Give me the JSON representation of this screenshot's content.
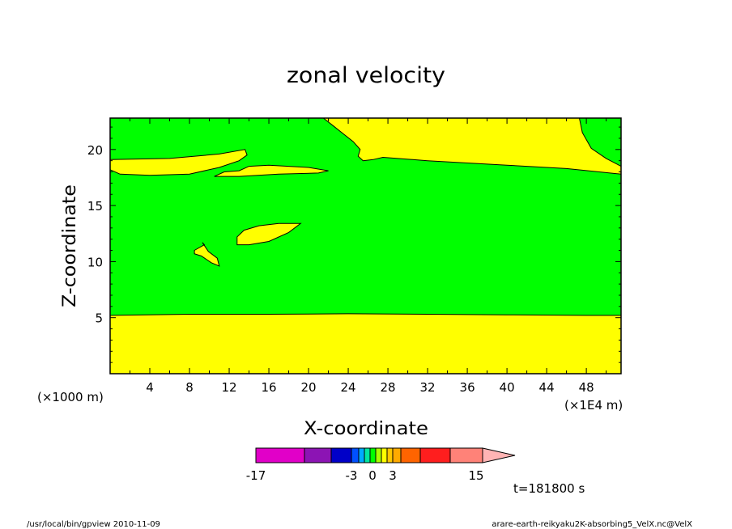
{
  "chart_data": {
    "type": "heatmap",
    "title": "zonal velocity",
    "xlabel": "X-coordinate",
    "ylabel": "Z-coordinate",
    "x_unit_left": "(×1000 m)",
    "x_unit_right": "(×1E4 m)",
    "x_ticks": [
      "4",
      "8",
      "12",
      "16",
      "20",
      "24",
      "28",
      "32",
      "36",
      "40",
      "44",
      "48"
    ],
    "y_ticks": [
      "5",
      "10",
      "15",
      "20"
    ],
    "xlim": [
      0,
      51.5
    ],
    "ylim": [
      0,
      22.8
    ],
    "background_level": {
      "range": [
        -1,
        0
      ],
      "color": "#00ff00"
    },
    "regions": [
      {
        "name": "lower-band",
        "level": [
          0,
          1
        ],
        "color": "#ffff00",
        "outline": [
          [
            0,
            5.2
          ],
          [
            8,
            5.3
          ],
          [
            16,
            5.3
          ],
          [
            24,
            5.35
          ],
          [
            32,
            5.3
          ],
          [
            40,
            5.25
          ],
          [
            48,
            5.2
          ],
          [
            51.5,
            5.2
          ],
          [
            51.5,
            0
          ],
          [
            0,
            0
          ]
        ]
      },
      {
        "name": "upper-band",
        "level": [
          0,
          1
        ],
        "color": "#ffff00",
        "outline": [
          [
            21.5,
            22.8
          ],
          [
            51.5,
            22.8
          ],
          [
            51.5,
            17.8
          ],
          [
            46,
            18.3
          ],
          [
            40,
            18.6
          ],
          [
            32,
            19
          ],
          [
            27.5,
            19.3
          ],
          [
            26.5,
            19.1
          ],
          [
            25.5,
            19
          ],
          [
            25,
            19.4
          ],
          [
            25.2,
            20
          ],
          [
            24.5,
            20.7
          ],
          [
            23.5,
            21.4
          ],
          [
            22.5,
            22.1
          ]
        ]
      },
      {
        "name": "upper-right-patch",
        "level": [
          -1,
          0
        ],
        "color": "#00ff00",
        "outline": [
          [
            47.3,
            22.8
          ],
          [
            51.5,
            22.8
          ],
          [
            51.5,
            18.5
          ],
          [
            50,
            19.2
          ],
          [
            48.5,
            20.1
          ],
          [
            47.6,
            21.5
          ]
        ]
      },
      {
        "name": "left-tongue",
        "level": [
          0,
          1
        ],
        "color": "#ffff00",
        "outline": [
          [
            0,
            18.2
          ],
          [
            0,
            19.1
          ],
          [
            6,
            19.2
          ],
          [
            11,
            19.6
          ],
          [
            13.6,
            20
          ],
          [
            13.8,
            19.5
          ],
          [
            13,
            19
          ],
          [
            11,
            18.4
          ],
          [
            8,
            17.8
          ],
          [
            4,
            17.7
          ],
          [
            1,
            17.8
          ]
        ]
      },
      {
        "name": "middle-tongue",
        "level": [
          0,
          1
        ],
        "color": "#ffff00",
        "outline": [
          [
            10.5,
            17.6
          ],
          [
            11.5,
            18
          ],
          [
            13,
            18.1
          ],
          [
            14,
            18.5
          ],
          [
            16,
            18.6
          ],
          [
            20,
            18.4
          ],
          [
            22,
            18.1
          ],
          [
            21,
            17.9
          ],
          [
            17,
            17.8
          ],
          [
            13,
            17.6
          ]
        ]
      },
      {
        "name": "blob-center",
        "level": [
          0,
          1
        ],
        "color": "#ffff00",
        "outline": [
          [
            12.8,
            11.5
          ],
          [
            12.8,
            12.2
          ],
          [
            13.5,
            12.8
          ],
          [
            15,
            13.2
          ],
          [
            17,
            13.4
          ],
          [
            19.2,
            13.4
          ],
          [
            18,
            12.6
          ],
          [
            16,
            11.8
          ],
          [
            14,
            11.5
          ]
        ]
      },
      {
        "name": "blob-left",
        "level": [
          0,
          1
        ],
        "color": "#ffff00",
        "outline": [
          [
            8.5,
            11
          ],
          [
            9.5,
            11.5
          ],
          [
            9.3,
            11.7
          ],
          [
            9.9,
            10.9
          ],
          [
            10.8,
            10.3
          ],
          [
            11,
            9.6
          ],
          [
            10.2,
            9.9
          ],
          [
            9.2,
            10.5
          ],
          [
            8.5,
            10.7
          ]
        ]
      }
    ],
    "colorbar": {
      "type": "horizontal-with-arrow",
      "colors": [
        "#e100c8",
        "#8c14b4",
        "#0000c8",
        "#0050ff",
        "#00aaff",
        "#00e6a0",
        "#00ff00",
        "#aaff00",
        "#ffff00",
        "#ffc800",
        "#ffaa00",
        "#ff6400",
        "#ff1e1e",
        "#ff8278"
      ],
      "arrow_color": "#ffb4b4",
      "labels": [
        "-17",
        "-3",
        "0",
        "3",
        "15"
      ]
    },
    "annotation": "t=181800 s"
  },
  "footer": {
    "left": "/usr/local/bin/gpview   2010-11-09",
    "right": "arare-earth-reikyaku2K-absorbing5_VelX.nc@VelX"
  }
}
